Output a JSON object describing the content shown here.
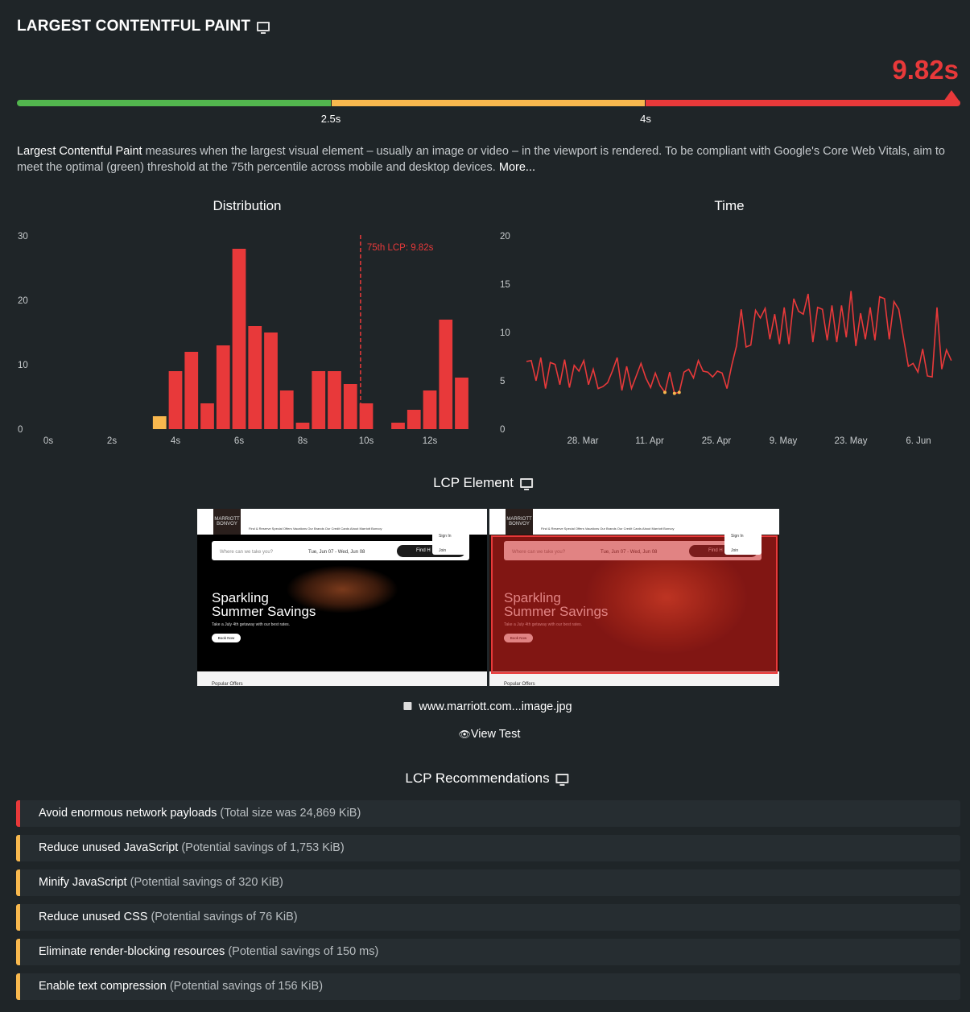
{
  "header": {
    "title": "LARGEST CONTENTFUL PAINT",
    "device_icon": "desktop-icon",
    "score": "9.82s",
    "score_color": "#e8393a"
  },
  "threshold_bar": {
    "labels": [
      "2.5s",
      "4s"
    ],
    "colors": {
      "good": "#52b64e",
      "needs_improvement": "#f8b84e",
      "poor": "#e8393a"
    }
  },
  "description": {
    "term": "Largest Contentful Paint",
    "text": " measures when the largest visual element – usually an image or video – in the viewport is rendered. To be compliant with Google's Core Web Vitals, aim to meet the optimal (green) threshold at the 75th percentile across mobile and desktop devices. ",
    "more_link": "More..."
  },
  "chart_data": [
    {
      "type": "bar",
      "title": "Distribution",
      "x_unit": "s",
      "bin_width": 0.5,
      "bin_centers": [
        3.5,
        4,
        4.5,
        5,
        5.5,
        6,
        6.5,
        7,
        7.5,
        8,
        8.5,
        9,
        9.5,
        10,
        10.5,
        11,
        11.5,
        12,
        12.5,
        13
      ],
      "values": [
        2,
        9,
        12,
        4,
        13,
        28,
        16,
        15,
        6,
        1,
        9,
        9,
        7,
        4,
        0,
        1,
        3,
        6,
        17,
        8
      ],
      "xticks": [
        "0s",
        "2s",
        "4s",
        "6s",
        "8s",
        "10s",
        "12s"
      ],
      "xtick_values": [
        0,
        2,
        4,
        6,
        8,
        10,
        12
      ],
      "yticks": [
        "0",
        "10",
        "20",
        "30"
      ],
      "ylim": [
        0,
        30
      ],
      "annotation": {
        "label": "75th LCP: 9.82s",
        "x": 9.82
      },
      "colors": {
        "below_4s": "#f8b84e",
        "above_4s": "#e8393a"
      }
    },
    {
      "type": "line",
      "title": "Time",
      "xticks": [
        "28. Mar",
        "11. Apr",
        "25. Apr",
        "9. May",
        "23. May",
        "6. Jun"
      ],
      "yticks": [
        "0",
        "5",
        "10",
        "15",
        "20"
      ],
      "ylim": [
        0,
        20
      ],
      "series": [
        {
          "month": "Mar",
          "first_day": 16,
          "values": [
            7,
            7.1,
            5,
            7.4,
            4.2,
            6.9,
            6.7,
            4.6,
            7.2,
            4.3,
            6.6,
            6,
            7.1,
            4.6,
            6.2,
            4.2
          ]
        },
        {
          "month": "Apr",
          "first_day": 1,
          "values": [
            4.4,
            4.8,
            6,
            7.4,
            4,
            6.5,
            4.2,
            5.5,
            6.8,
            5.3,
            4.3,
            5.8,
            4.5,
            3.8,
            5.9,
            3.7,
            3.8,
            5.9,
            6.2,
            5.3,
            7.1,
            6,
            5.9,
            5.4,
            6,
            5.8,
            4.2,
            6.6,
            8.6,
            12.4
          ]
        },
        {
          "month": "May",
          "first_day": 1,
          "values": [
            8.5,
            8.7,
            12.3,
            11.5,
            12.5,
            9.3,
            11.9,
            8.8,
            12.6,
            8.8,
            13.5,
            12.2,
            11.9,
            14,
            9,
            12.6,
            12.4,
            9.2,
            12.8,
            9,
            12.8,
            9.5,
            14.3,
            8.6,
            12,
            9.3,
            12.6,
            9.2,
            13.7,
            13.5,
            9.3
          ]
        },
        {
          "month": "Jun",
          "first_day": 1,
          "values": [
            13.2,
            12.4,
            9.4,
            6.5,
            6.8,
            5.9,
            8.3,
            5.5,
            5.4,
            12.6,
            6.2,
            8.2,
            7.1
          ]
        }
      ],
      "colors": {
        "line": "#e8393a",
        "below_4s": "#f8b84e"
      }
    }
  ],
  "lcp_element": {
    "title": "LCP Element",
    "screenshot": {
      "logo": "MARRIOTT BONVOY",
      "nav": "Find & Reserve   Special Offers   Vacations   Our Brands   Our Credit Cards   About Marriott Bonvoy",
      "search_placeholder": "Where can we take you?",
      "dates": "Tue, Jun 07 - Wed, Jun 08",
      "find": "Find H",
      "sign_in": "Sign In",
      "join": "Join",
      "headline1": "Sparkling",
      "headline2": "Summer Savings",
      "subtext": "Take a July 4th getaway with our best rates.",
      "book": "Book Now",
      "footer": "Popular Offers"
    },
    "file": "www.marriott.com...image.jpg",
    "file_icon": "image-icon",
    "view_test": "View Test",
    "view_icon": "eye-icon"
  },
  "recommendations": {
    "title": "LCP Recommendations",
    "items": [
      {
        "name": "Avoid enormous network payloads",
        "detail": "(Total size was 24,869 KiB)",
        "severity": "#e8393a"
      },
      {
        "name": "Reduce unused JavaScript",
        "detail": "(Potential savings of 1,753 KiB)",
        "severity": "#f8b84e"
      },
      {
        "name": "Minify JavaScript",
        "detail": "(Potential savings of 320 KiB)",
        "severity": "#f8b84e"
      },
      {
        "name": "Reduce unused CSS",
        "detail": "(Potential savings of 76 KiB)",
        "severity": "#f8b84e"
      },
      {
        "name": "Eliminate render-blocking resources",
        "detail": "(Potential savings of 150 ms)",
        "severity": "#f8b84e"
      },
      {
        "name": "Enable text compression",
        "detail": "(Potential savings of 156 KiB)",
        "severity": "#f8b84e"
      }
    ]
  }
}
